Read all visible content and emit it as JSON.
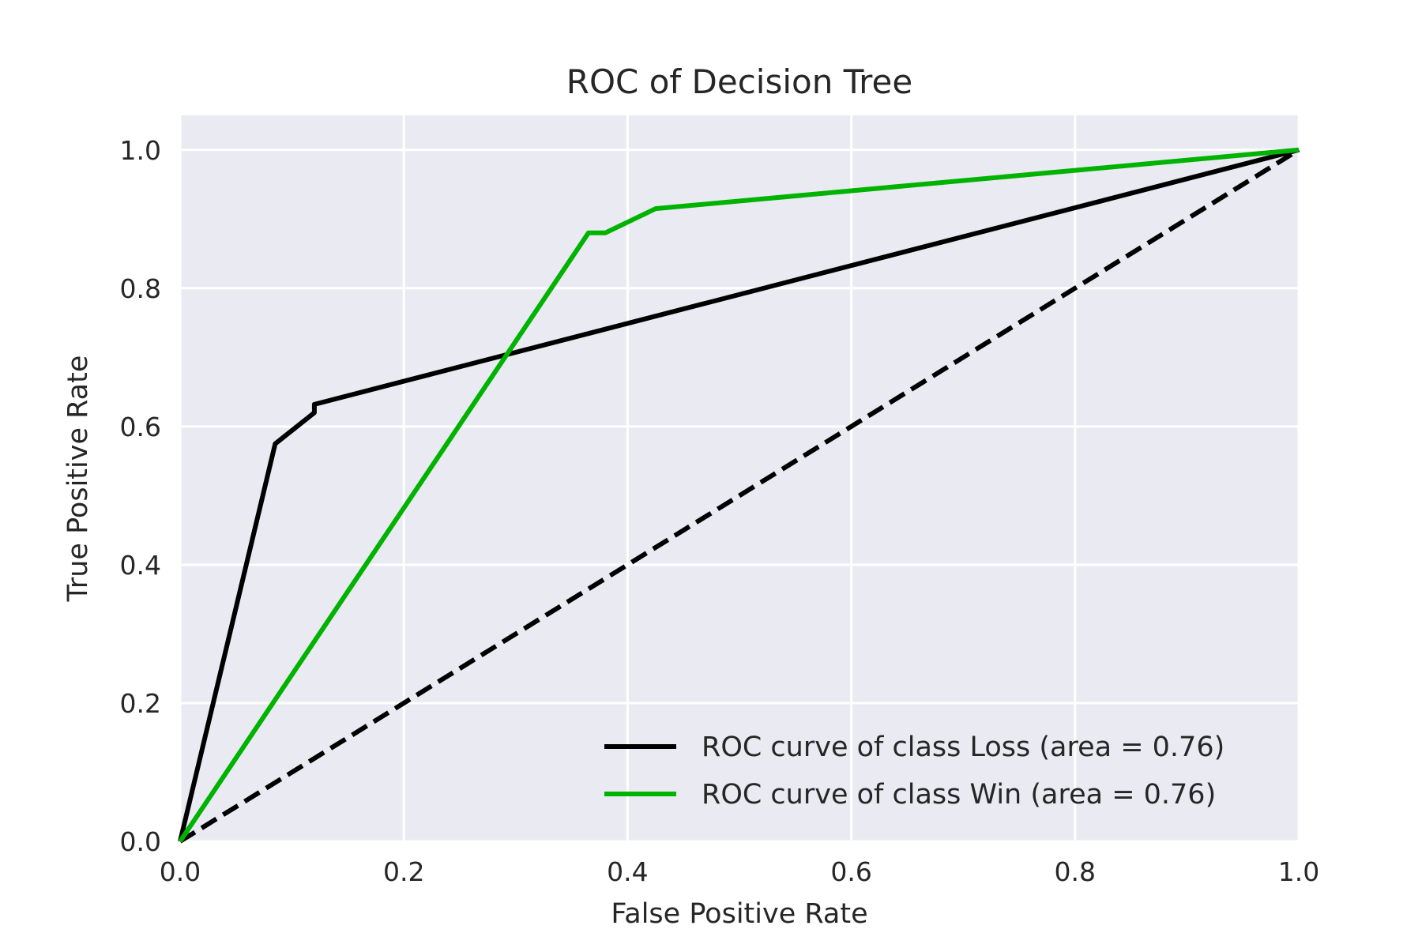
{
  "chart_data": {
    "type": "line",
    "title": "ROC of Decision Tree",
    "xlabel": "False Positive Rate",
    "ylabel": "True Positive Rate",
    "xlim": [
      0.0,
      1.0
    ],
    "ylim": [
      0.0,
      1.05
    ],
    "xticks": [
      0.0,
      0.2,
      0.4,
      0.6,
      0.8,
      1.0
    ],
    "xtick_labels": [
      "0.0",
      "0.2",
      "0.4",
      "0.6",
      "0.8",
      "1.0"
    ],
    "yticks": [
      0.0,
      0.2,
      0.4,
      0.6,
      0.8,
      1.0
    ],
    "ytick_labels": [
      "0.0",
      "0.2",
      "0.4",
      "0.6",
      "0.8",
      "1.0"
    ],
    "grid": true,
    "background": "#eaeaf2",
    "legend_position": "lower-right",
    "series": [
      {
        "name": "ROC curve of class Loss (area = 0.76)",
        "color": "#000000",
        "style": "solid",
        "x": [
          0.0,
          0.085,
          0.12,
          0.12,
          1.0
        ],
        "y": [
          0.0,
          0.575,
          0.62,
          0.632,
          1.0
        ]
      },
      {
        "name": "ROC curve of class Win (area = 0.76)",
        "color": "#00b300",
        "style": "solid",
        "x": [
          0.0,
          0.365,
          0.38,
          0.425,
          1.0
        ],
        "y": [
          0.0,
          0.88,
          0.88,
          0.915,
          1.0
        ]
      },
      {
        "color": "#000000",
        "style": "dashed",
        "x": [
          0.0,
          1.0
        ],
        "y": [
          0.0,
          1.0
        ]
      }
    ]
  }
}
